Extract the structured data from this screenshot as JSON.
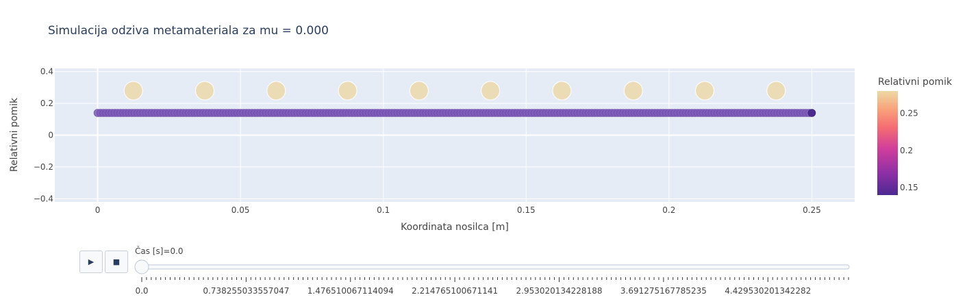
{
  "chart_data": {
    "type": "scatter",
    "title": "Simulacija odziva metamateriala za mu = 0.000",
    "xlabel": "Koordinata nosilca [m]",
    "ylabel": "Relativni pomik",
    "xlim": [
      -0.015,
      0.265
    ],
    "ylim": [
      -0.42,
      0.42
    ],
    "x_ticks": [
      0,
      0.05,
      0.1,
      0.15,
      0.2,
      0.25
    ],
    "x_tick_labels": [
      "0",
      "0.05",
      "0.1",
      "0.15",
      "0.2",
      "0.25"
    ],
    "y_ticks": [
      -0.4,
      -0.2,
      0,
      0.2,
      0.4
    ],
    "y_tick_labels": [
      "−0.4",
      "−0.2",
      "0",
      "0.2",
      "0.4"
    ],
    "grid": true,
    "series": [
      {
        "marker": "beam",
        "x_start": 0,
        "x_end": 0.25,
        "count": 251,
        "y": 0.14,
        "color_value": 0.14
      },
      {
        "marker": "resonator",
        "x": [
          0.0125,
          0.0375,
          0.0625,
          0.0875,
          0.1125,
          0.1375,
          0.1625,
          0.1875,
          0.2125,
          0.2375
        ],
        "y": [
          0.28,
          0.28,
          0.28,
          0.28,
          0.28,
          0.28,
          0.28,
          0.28,
          0.28,
          0.28
        ],
        "color_value": 0.28
      }
    ],
    "colorbar": {
      "title": "Relativni pomik",
      "range": [
        0.14,
        0.28
      ],
      "tick_values": [
        0.15,
        0.2,
        0.25
      ],
      "tick_labels": [
        "0.15",
        "0.2",
        "0.25"
      ],
      "colorscale": [
        "#5b2a9a",
        "#8b2fa6",
        "#d13f9a",
        "#f56d72",
        "#f9a07a",
        "#efcf98"
      ]
    }
  },
  "slider": {
    "label_prefix": "Čas [s]=",
    "current": "0.0",
    "tick_labels": [
      "0.0",
      "0.738255033557047",
      "1.476510067114094",
      "2.214765100671141",
      "2.953020134228188",
      "3.691275167785235",
      "4.429530201342282"
    ],
    "play_icon": "▶",
    "stop_icon": "■"
  },
  "colors": {
    "plot_bg": "#e5ecf6",
    "grid": "#ffffff",
    "beam_fill": "#7e5bb8",
    "beam_end": "#4a2a8c",
    "resonator_fill": "#ecdcb6"
  }
}
